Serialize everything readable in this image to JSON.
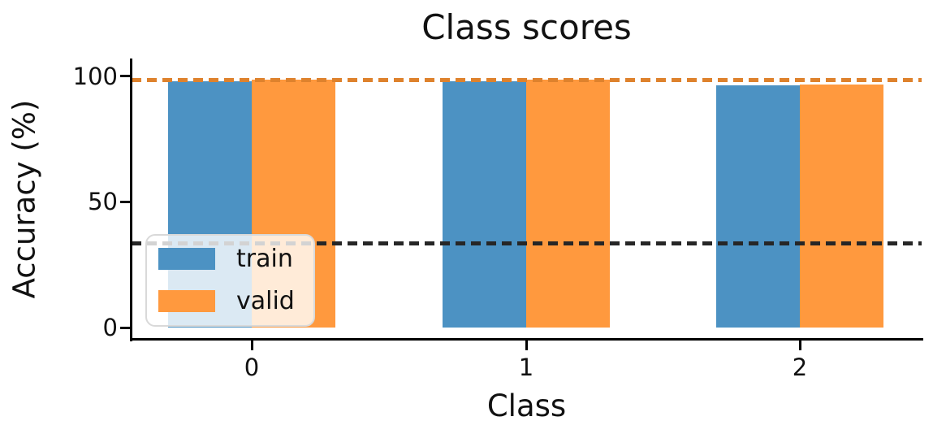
{
  "chart_data": {
    "type": "bar",
    "title": "Class scores",
    "xlabel": "Class",
    "ylabel": "Accuracy (%)",
    "categories": [
      "0",
      "1",
      "2"
    ],
    "series": [
      {
        "name": "train",
        "color": "#4c92c3",
        "values": [
          97.8,
          98.0,
          96.3
        ]
      },
      {
        "name": "valid",
        "color": "#ff993e",
        "values": [
          98.4,
          98.5,
          96.5
        ]
      }
    ],
    "hlines": [
      {
        "name": "valid-reference-line",
        "value": 98.5,
        "color": "#de822d",
        "style": "dashed"
      },
      {
        "name": "chance-level-line",
        "value": 33.3,
        "color": "#262626",
        "style": "dashed"
      }
    ],
    "yticks": [
      "0",
      "50",
      "100"
    ],
    "ylim": [
      -4.5,
      107
    ],
    "grid": false,
    "legend": {
      "position": "lower left",
      "items": [
        "train",
        "valid"
      ]
    }
  }
}
